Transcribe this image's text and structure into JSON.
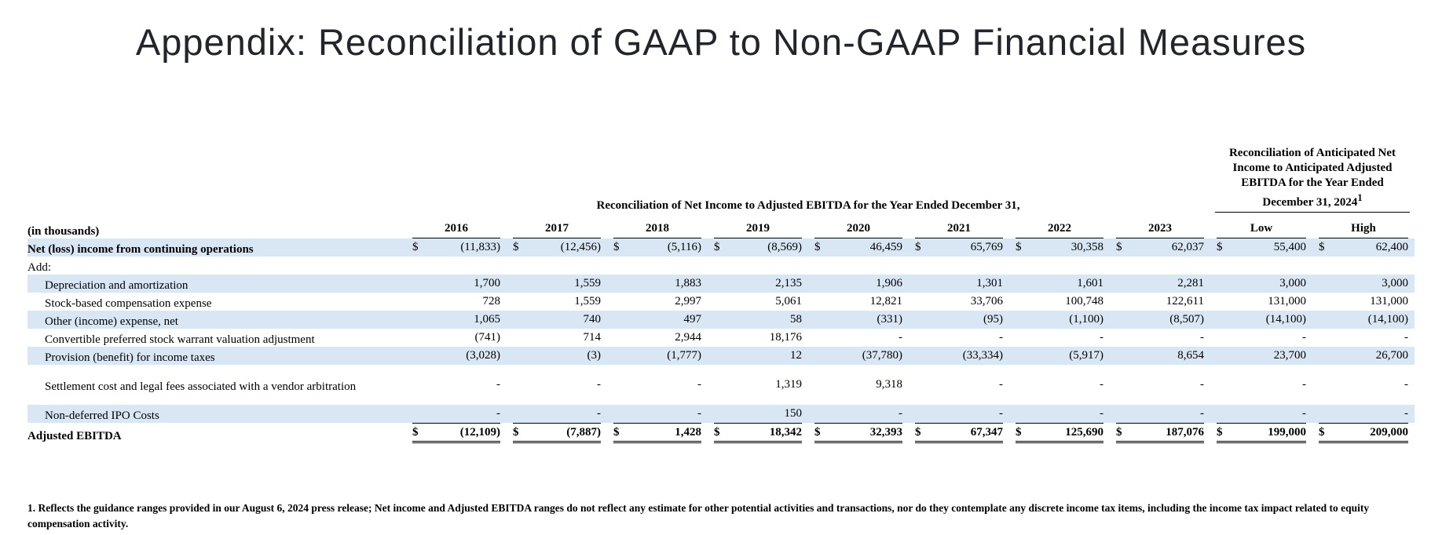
{
  "page": {
    "title": "Appendix: Reconciliation of GAAP to Non-GAAP Financial Measures"
  },
  "table": {
    "left_header": "(in thousands)",
    "group_header_left": "Reconciliation of Net Income to Adjusted EBITDA for the Year Ended December 31,",
    "group_header_right": "Reconciliation of Anticipated Net Income to Anticipated Adjusted EBITDA for the Year Ended December 31, 2024",
    "group_header_right_sup": "1",
    "year_columns": [
      "2016",
      "2017",
      "2018",
      "2019",
      "2020",
      "2021",
      "2022",
      "2023"
    ],
    "range_columns": [
      "Low",
      "High"
    ],
    "rows": [
      {
        "label": "Net (loss) income from continuing operations",
        "bold": true,
        "shaded": true,
        "dollar": true,
        "values": [
          "(11,833)",
          "(12,456)",
          "(5,116)",
          "(8,569)",
          "46,459",
          "65,769",
          "30,358",
          "62,037",
          "55,400",
          "62,400"
        ]
      },
      {
        "label": "Add:",
        "shaded": false,
        "values": []
      },
      {
        "label": "Depreciation and amortization",
        "indent": true,
        "shaded": true,
        "values": [
          "1,700",
          "1,559",
          "1,883",
          "2,135",
          "1,906",
          "1,301",
          "1,601",
          "2,281",
          "3,000",
          "3,000"
        ]
      },
      {
        "label": "Stock-based compensation expense",
        "indent": true,
        "shaded": false,
        "values": [
          "728",
          "1,559",
          "2,997",
          "5,061",
          "12,821",
          "33,706",
          "100,748",
          "122,611",
          "131,000",
          "131,000"
        ]
      },
      {
        "label": "Other (income) expense, net",
        "indent": true,
        "shaded": true,
        "values": [
          "1,065",
          "740",
          "497",
          "58",
          "(331)",
          "(95)",
          "(1,100)",
          "(8,507)",
          "(14,100)",
          "(14,100)"
        ]
      },
      {
        "label": "Convertible preferred stock warrant valuation adjustment",
        "indent": true,
        "shaded": false,
        "values": [
          "(741)",
          "714",
          "2,944",
          "18,176",
          "-",
          "-",
          "-",
          "-",
          "-",
          "-"
        ]
      },
      {
        "label": "Provision (benefit) for income taxes",
        "indent": true,
        "shaded": true,
        "values": [
          "(3,028)",
          "(3)",
          "(1,777)",
          "12",
          "(37,780)",
          "(33,334)",
          "(5,917)",
          "8,654",
          "23,700",
          "26,700"
        ]
      },
      {
        "spacer": true
      },
      {
        "label": "Settlement cost and legal fees associated with a vendor arbitration",
        "indent": true,
        "shaded": false,
        "values": [
          "-",
          "-",
          "-",
          "1,319",
          "9,318",
          "-",
          "-",
          "-",
          "-",
          "-"
        ]
      },
      {
        "spacer": true
      },
      {
        "label": "Non-deferred IPO Costs",
        "indent": true,
        "shaded": true,
        "values": [
          "-",
          "-",
          "-",
          "150",
          "-",
          "-",
          "-",
          "-",
          "-",
          "-"
        ]
      },
      {
        "label": "Adjusted EBITDA",
        "bold": true,
        "shaded": false,
        "dollar": true,
        "total": true,
        "values": [
          "(12,109)",
          "(7,887)",
          "1,428",
          "18,342",
          "32,393",
          "67,347",
          "125,690",
          "187,076",
          "199,000",
          "209,000"
        ]
      }
    ]
  },
  "footnote": "1. Reflects the guidance ranges provided in our August 6, 2024 press release; Net income and Adjusted EBITDA ranges do not reflect any estimate for other potential activities and transactions, nor do they contemplate any discrete income tax items, including the income tax impact related to equity compensation activity.",
  "colors": {
    "row_shade": "#d9e7f4",
    "title_text": "#22252c",
    "body_text": "#000000"
  }
}
